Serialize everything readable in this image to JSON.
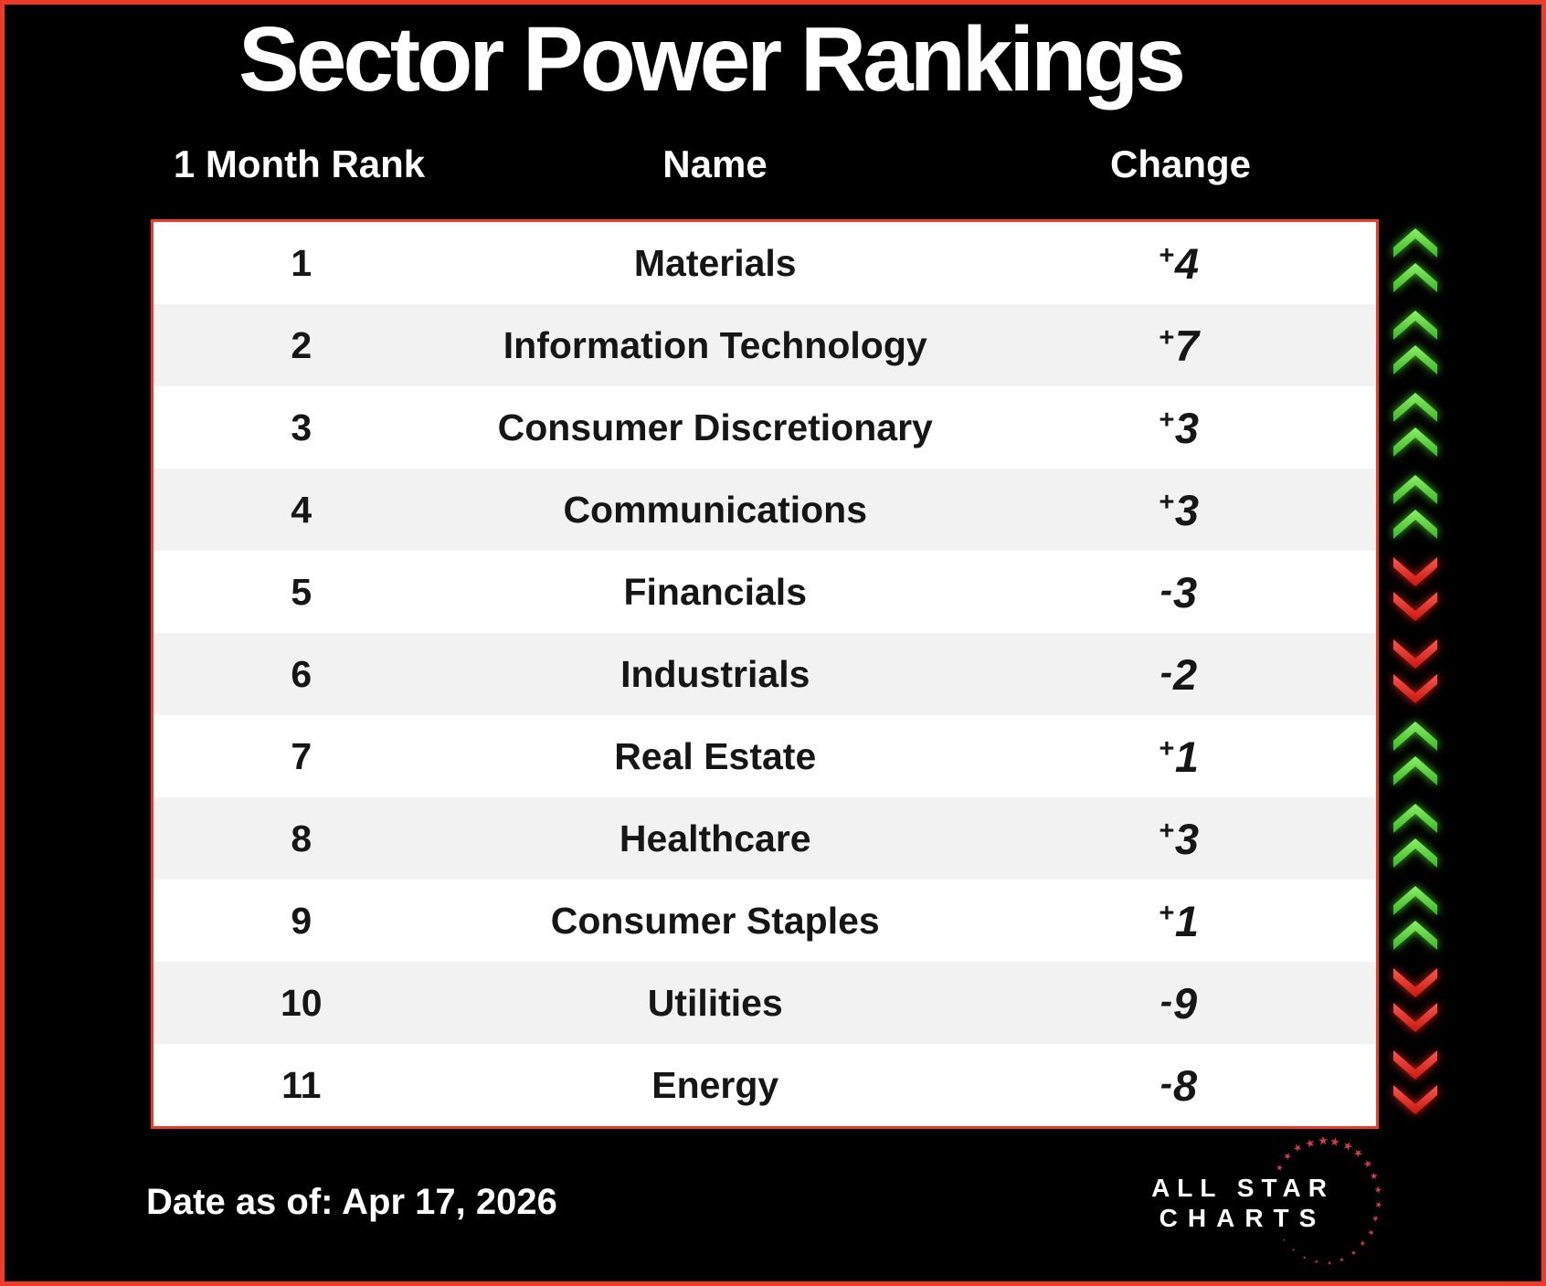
{
  "chart_data": {
    "type": "table",
    "title": "Sector Power Rankings",
    "columns": [
      "1 Month Rank",
      "Name",
      "Change"
    ],
    "rows": [
      {
        "rank": "1",
        "name": "Materials",
        "change": "+4",
        "direction": "up"
      },
      {
        "rank": "2",
        "name": "Information Technology",
        "change": "+7",
        "direction": "up"
      },
      {
        "rank": "3",
        "name": "Consumer Discretionary",
        "change": "+3",
        "direction": "up"
      },
      {
        "rank": "4",
        "name": "Communications",
        "change": "+3",
        "direction": "up"
      },
      {
        "rank": "5",
        "name": "Financials",
        "change": "-3",
        "direction": "down"
      },
      {
        "rank": "6",
        "name": "Industrials",
        "change": "-2",
        "direction": "down"
      },
      {
        "rank": "7",
        "name": "Real Estate",
        "change": "+1",
        "direction": "up"
      },
      {
        "rank": "8",
        "name": "Healthcare",
        "change": "+3",
        "direction": "up"
      },
      {
        "rank": "9",
        "name": "Consumer Staples",
        "change": "+1",
        "direction": "up"
      },
      {
        "rank": "10",
        "name": "Utilities",
        "change": "-9",
        "direction": "down"
      },
      {
        "rank": "11",
        "name": "Energy",
        "change": "-8",
        "direction": "down"
      }
    ]
  },
  "footer": {
    "date": "Date as of: Apr 17, 2026"
  },
  "logo": {
    "line1": "ALL STAR",
    "line2": "CHARTS",
    "star_icon": "star-icon"
  },
  "colors": {
    "frame_red": "#ee3a26",
    "row_alt": "#f2f2f2",
    "text_dark": "#161616",
    "up_green_light": "#8bf167",
    "up_green_dark": "#3ab625",
    "down_red_light": "#f75b50",
    "down_red_dark": "#cc140b",
    "star_red": "#d23b4b"
  }
}
